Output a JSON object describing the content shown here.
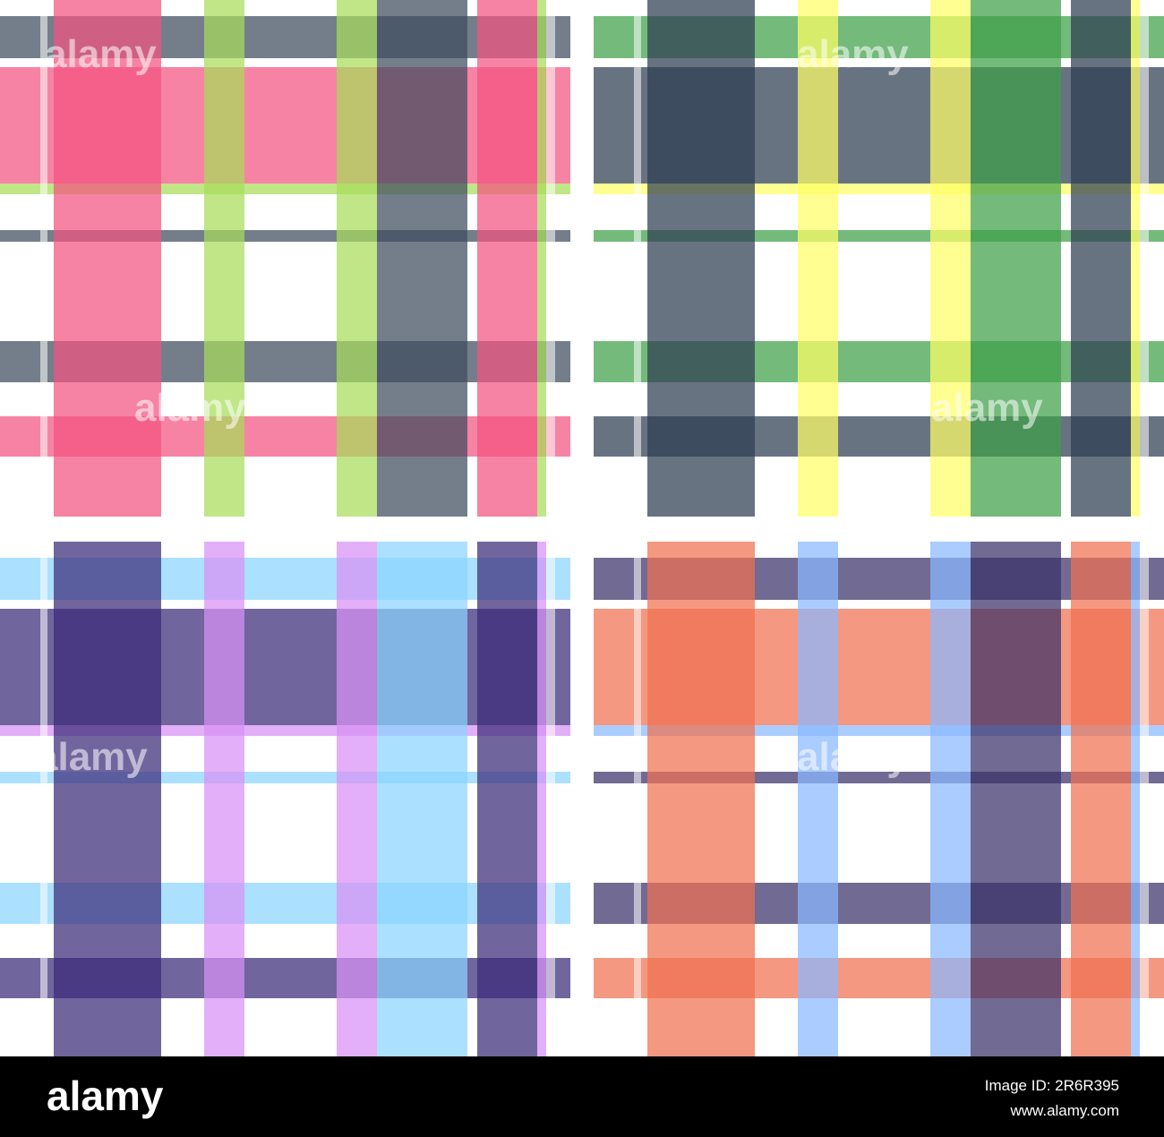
{
  "watermark": "alamy",
  "footer": {
    "logo": "alamy",
    "image_id": "Image ID: 2R6R395",
    "site": "www.alamy.com"
  }
}
